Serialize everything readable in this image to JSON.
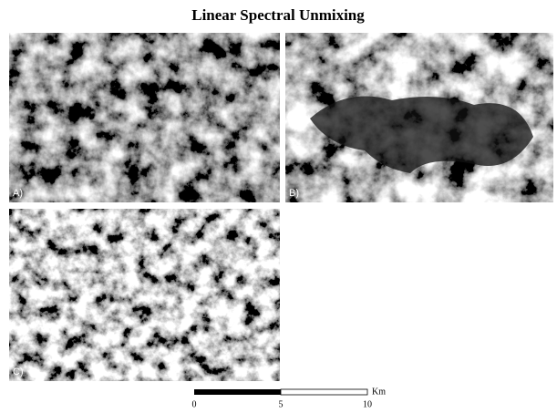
{
  "title": "Linear Spectral Unmixing",
  "panels": [
    {
      "label": "A)"
    },
    {
      "label": "B)"
    },
    {
      "label": "C)"
    }
  ],
  "scale_bar": {
    "labels": [
      "0",
      "5",
      "10"
    ],
    "unit": "Km"
  }
}
